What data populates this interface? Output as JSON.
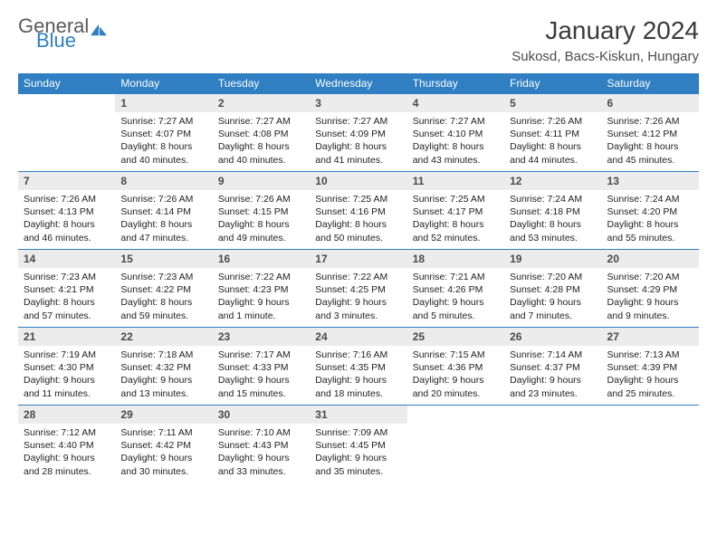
{
  "logo": {
    "text1": "General",
    "text2": "Blue",
    "icon_color": "#2f7fc2"
  },
  "title": "January 2024",
  "location": "Sukosd, Bacs-Kiskun, Hungary",
  "colors": {
    "header_bg": "#2f7fc2",
    "header_fg": "#ffffff",
    "daynum_bg": "#ececec",
    "border": "#2f7fc2"
  },
  "weekdays": [
    "Sunday",
    "Monday",
    "Tuesday",
    "Wednesday",
    "Thursday",
    "Friday",
    "Saturday"
  ],
  "weeks": [
    [
      {
        "n": "",
        "lines": []
      },
      {
        "n": "1",
        "lines": [
          "Sunrise: 7:27 AM",
          "Sunset: 4:07 PM",
          "Daylight: 8 hours",
          "and 40 minutes."
        ]
      },
      {
        "n": "2",
        "lines": [
          "Sunrise: 7:27 AM",
          "Sunset: 4:08 PM",
          "Daylight: 8 hours",
          "and 40 minutes."
        ]
      },
      {
        "n": "3",
        "lines": [
          "Sunrise: 7:27 AM",
          "Sunset: 4:09 PM",
          "Daylight: 8 hours",
          "and 41 minutes."
        ]
      },
      {
        "n": "4",
        "lines": [
          "Sunrise: 7:27 AM",
          "Sunset: 4:10 PM",
          "Daylight: 8 hours",
          "and 43 minutes."
        ]
      },
      {
        "n": "5",
        "lines": [
          "Sunrise: 7:26 AM",
          "Sunset: 4:11 PM",
          "Daylight: 8 hours",
          "and 44 minutes."
        ]
      },
      {
        "n": "6",
        "lines": [
          "Sunrise: 7:26 AM",
          "Sunset: 4:12 PM",
          "Daylight: 8 hours",
          "and 45 minutes."
        ]
      }
    ],
    [
      {
        "n": "7",
        "lines": [
          "Sunrise: 7:26 AM",
          "Sunset: 4:13 PM",
          "Daylight: 8 hours",
          "and 46 minutes."
        ]
      },
      {
        "n": "8",
        "lines": [
          "Sunrise: 7:26 AM",
          "Sunset: 4:14 PM",
          "Daylight: 8 hours",
          "and 47 minutes."
        ]
      },
      {
        "n": "9",
        "lines": [
          "Sunrise: 7:26 AM",
          "Sunset: 4:15 PM",
          "Daylight: 8 hours",
          "and 49 minutes."
        ]
      },
      {
        "n": "10",
        "lines": [
          "Sunrise: 7:25 AM",
          "Sunset: 4:16 PM",
          "Daylight: 8 hours",
          "and 50 minutes."
        ]
      },
      {
        "n": "11",
        "lines": [
          "Sunrise: 7:25 AM",
          "Sunset: 4:17 PM",
          "Daylight: 8 hours",
          "and 52 minutes."
        ]
      },
      {
        "n": "12",
        "lines": [
          "Sunrise: 7:24 AM",
          "Sunset: 4:18 PM",
          "Daylight: 8 hours",
          "and 53 minutes."
        ]
      },
      {
        "n": "13",
        "lines": [
          "Sunrise: 7:24 AM",
          "Sunset: 4:20 PM",
          "Daylight: 8 hours",
          "and 55 minutes."
        ]
      }
    ],
    [
      {
        "n": "14",
        "lines": [
          "Sunrise: 7:23 AM",
          "Sunset: 4:21 PM",
          "Daylight: 8 hours",
          "and 57 minutes."
        ]
      },
      {
        "n": "15",
        "lines": [
          "Sunrise: 7:23 AM",
          "Sunset: 4:22 PM",
          "Daylight: 8 hours",
          "and 59 minutes."
        ]
      },
      {
        "n": "16",
        "lines": [
          "Sunrise: 7:22 AM",
          "Sunset: 4:23 PM",
          "Daylight: 9 hours",
          "and 1 minute."
        ]
      },
      {
        "n": "17",
        "lines": [
          "Sunrise: 7:22 AM",
          "Sunset: 4:25 PM",
          "Daylight: 9 hours",
          "and 3 minutes."
        ]
      },
      {
        "n": "18",
        "lines": [
          "Sunrise: 7:21 AM",
          "Sunset: 4:26 PM",
          "Daylight: 9 hours",
          "and 5 minutes."
        ]
      },
      {
        "n": "19",
        "lines": [
          "Sunrise: 7:20 AM",
          "Sunset: 4:28 PM",
          "Daylight: 9 hours",
          "and 7 minutes."
        ]
      },
      {
        "n": "20",
        "lines": [
          "Sunrise: 7:20 AM",
          "Sunset: 4:29 PM",
          "Daylight: 9 hours",
          "and 9 minutes."
        ]
      }
    ],
    [
      {
        "n": "21",
        "lines": [
          "Sunrise: 7:19 AM",
          "Sunset: 4:30 PM",
          "Daylight: 9 hours",
          "and 11 minutes."
        ]
      },
      {
        "n": "22",
        "lines": [
          "Sunrise: 7:18 AM",
          "Sunset: 4:32 PM",
          "Daylight: 9 hours",
          "and 13 minutes."
        ]
      },
      {
        "n": "23",
        "lines": [
          "Sunrise: 7:17 AM",
          "Sunset: 4:33 PM",
          "Daylight: 9 hours",
          "and 15 minutes."
        ]
      },
      {
        "n": "24",
        "lines": [
          "Sunrise: 7:16 AM",
          "Sunset: 4:35 PM",
          "Daylight: 9 hours",
          "and 18 minutes."
        ]
      },
      {
        "n": "25",
        "lines": [
          "Sunrise: 7:15 AM",
          "Sunset: 4:36 PM",
          "Daylight: 9 hours",
          "and 20 minutes."
        ]
      },
      {
        "n": "26",
        "lines": [
          "Sunrise: 7:14 AM",
          "Sunset: 4:37 PM",
          "Daylight: 9 hours",
          "and 23 minutes."
        ]
      },
      {
        "n": "27",
        "lines": [
          "Sunrise: 7:13 AM",
          "Sunset: 4:39 PM",
          "Daylight: 9 hours",
          "and 25 minutes."
        ]
      }
    ],
    [
      {
        "n": "28",
        "lines": [
          "Sunrise: 7:12 AM",
          "Sunset: 4:40 PM",
          "Daylight: 9 hours",
          "and 28 minutes."
        ]
      },
      {
        "n": "29",
        "lines": [
          "Sunrise: 7:11 AM",
          "Sunset: 4:42 PM",
          "Daylight: 9 hours",
          "and 30 minutes."
        ]
      },
      {
        "n": "30",
        "lines": [
          "Sunrise: 7:10 AM",
          "Sunset: 4:43 PM",
          "Daylight: 9 hours",
          "and 33 minutes."
        ]
      },
      {
        "n": "31",
        "lines": [
          "Sunrise: 7:09 AM",
          "Sunset: 4:45 PM",
          "Daylight: 9 hours",
          "and 35 minutes."
        ]
      },
      {
        "n": "",
        "lines": []
      },
      {
        "n": "",
        "lines": []
      },
      {
        "n": "",
        "lines": []
      }
    ]
  ]
}
